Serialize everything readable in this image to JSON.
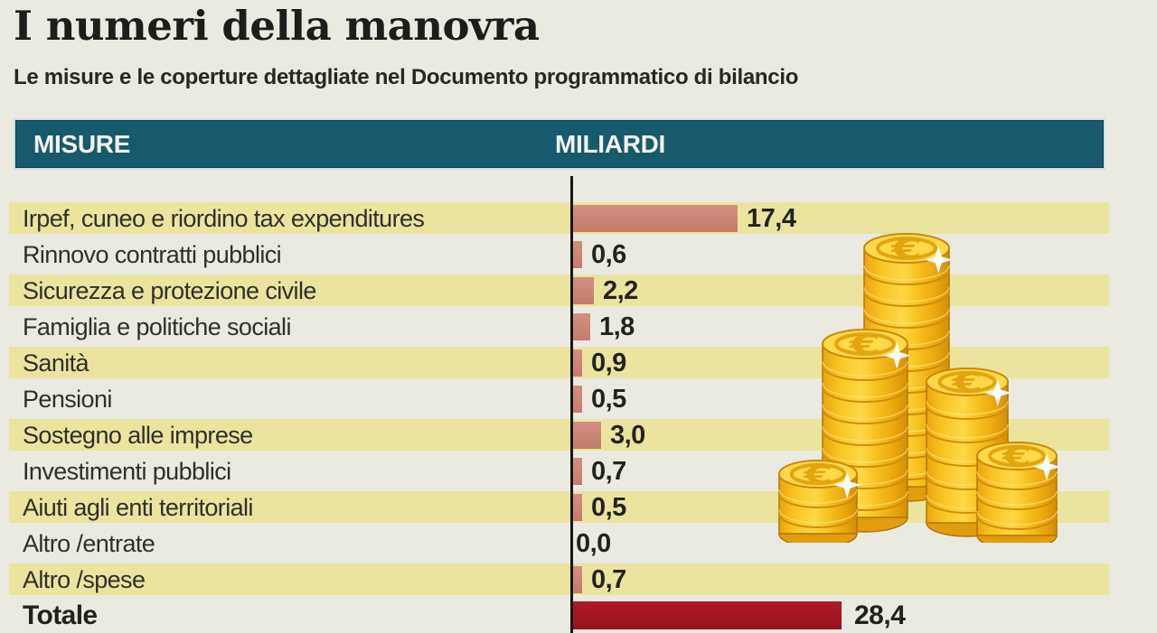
{
  "title": "I numeri della manovra",
  "subtitle": "Le misure e le coperture dettagliate nel Documento programmatico di bilancio",
  "table": {
    "col_measures": "MISURE",
    "col_billions": "MILIARDI"
  },
  "chart_data": {
    "type": "bar",
    "orientation": "horizontal",
    "title": "I numeri della manovra",
    "xlabel": "MILIARDI",
    "ylabel": "MISURE",
    "xlim": [
      0,
      30
    ],
    "unit": "miliardi di euro",
    "grid": false,
    "legend": false,
    "categories": [
      "Irpef, cuneo e riordino tax expenditures",
      "Rinnovo contratti pubblici",
      "Sicurezza e protezione civile",
      "Famiglia e politiche sociali",
      "Sanità",
      "Pensioni",
      "Sostegno alle imprese",
      "Investimenti pubblici",
      "Aiuti agli enti territoriali",
      "Altro /entrate",
      "Altro /spese"
    ],
    "values": [
      17.4,
      0.6,
      2.2,
      1.8,
      0.9,
      0.5,
      3.0,
      0.7,
      0.5,
      0.0,
      0.7
    ],
    "value_labels": [
      "17,4",
      "0,6",
      "2,2",
      "1,8",
      "0,9",
      "0,5",
      "3,0",
      "0,7",
      "0,5",
      "0,0",
      "0,7"
    ],
    "total": {
      "label": "Totale",
      "value": 28.4,
      "value_label": "28,4"
    },
    "bar_color": "#c98373",
    "total_bar_color": "#a31523"
  },
  "illustration": {
    "name": "euro-coin-stacks-icon",
    "coin_symbol": "€",
    "stack_count": 5
  },
  "colors": {
    "background": "#ebeae1",
    "row_stripe": "#eae49e",
    "header_bg": "#175a6e",
    "header_text": "#f2f6f4",
    "axis": "#161616",
    "label_text": "#30302a",
    "value_text": "#23231e",
    "coin_gold": "#f8c322"
  }
}
